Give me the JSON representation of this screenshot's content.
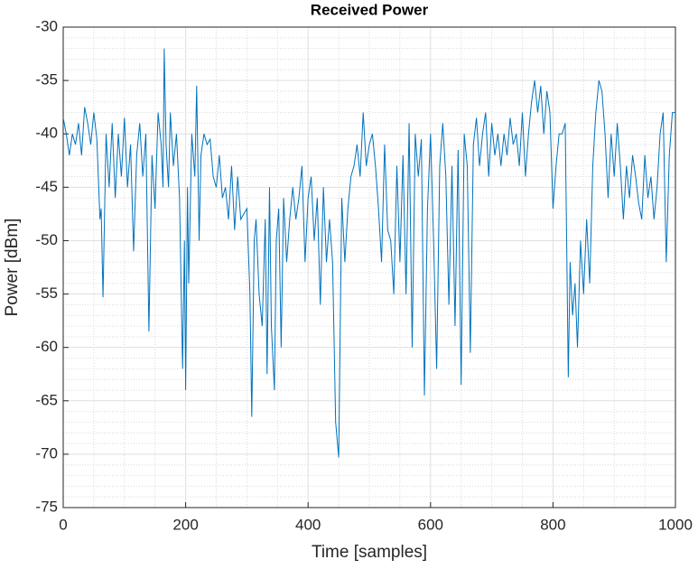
{
  "chart_data": {
    "type": "line",
    "title": "Received Power",
    "x_label": "Time [samples]",
    "y_label": "Power [dBm]",
    "x": [
      0,
      5,
      10,
      15,
      20,
      25,
      30,
      35,
      40,
      45,
      50,
      55,
      60,
      62,
      65,
      70,
      75,
      80,
      85,
      90,
      95,
      100,
      105,
      110,
      115,
      120,
      125,
      130,
      135,
      140,
      145,
      150,
      155,
      160,
      163,
      165,
      168,
      172,
      175,
      180,
      185,
      190,
      195,
      198,
      200,
      203,
      205,
      210,
      215,
      218,
      222,
      225,
      230,
      235,
      240,
      245,
      250,
      255,
      260,
      265,
      270,
      275,
      280,
      285,
      290,
      300,
      305,
      308,
      312,
      315,
      320,
      325,
      330,
      333,
      337,
      340,
      345,
      348,
      352,
      356,
      360,
      365,
      370,
      375,
      380,
      385,
      390,
      395,
      400,
      405,
      410,
      415,
      420,
      425,
      430,
      435,
      440,
      445,
      450,
      455,
      460,
      465,
      470,
      475,
      480,
      485,
      490,
      495,
      500,
      505,
      510,
      515,
      520,
      525,
      530,
      535,
      540,
      545,
      550,
      555,
      560,
      565,
      570,
      575,
      580,
      585,
      590,
      595,
      600,
      605,
      610,
      615,
      620,
      625,
      630,
      635,
      640,
      645,
      650,
      655,
      660,
      665,
      670,
      675,
      680,
      685,
      690,
      695,
      700,
      705,
      710,
      715,
      720,
      725,
      730,
      735,
      740,
      745,
      750,
      755,
      760,
      765,
      770,
      775,
      780,
      785,
      790,
      795,
      800,
      805,
      810,
      815,
      820,
      825,
      828,
      832,
      836,
      840,
      845,
      850,
      855,
      860,
      865,
      870,
      875,
      880,
      885,
      890,
      895,
      900,
      905,
      910,
      915,
      920,
      925,
      930,
      935,
      940,
      945,
      950,
      955,
      960,
      965,
      970,
      975,
      980,
      985,
      990,
      995,
      1000
    ],
    "series": [
      {
        "color": "#0072bd",
        "values": [
          -38.5,
          -40,
          -42,
          -40,
          -41,
          -39,
          -42,
          -37.5,
          -39,
          -41,
          -38,
          -40.5,
          -48,
          -47,
          -55.3,
          -40,
          -45,
          -39,
          -46,
          -40,
          -44,
          -38.5,
          -45,
          -41,
          -51,
          -42,
          -39,
          -44,
          -40,
          -58.5,
          -42,
          -47,
          -38,
          -41,
          -45,
          -32,
          -41,
          -45,
          -38,
          -43,
          -40,
          -46,
          -62,
          -50,
          -64,
          -45,
          -54,
          -40,
          -44,
          -35.5,
          -50,
          -42,
          -40,
          -41,
          -40.5,
          -44,
          -45,
          -42,
          -46,
          -45,
          -48,
          -43,
          -49,
          -44,
          -48,
          -47,
          -55,
          -66.5,
          -50,
          -48,
          -55,
          -58,
          -48,
          -62.5,
          -45,
          -58,
          -64,
          -50,
          -47,
          -60,
          -46,
          -52,
          -48,
          -45,
          -48,
          -46,
          -43,
          -52,
          -46,
          -44,
          -50,
          -46,
          -56,
          -45,
          -52,
          -48,
          -52,
          -67,
          -70.3,
          -46,
          -52,
          -47,
          -44,
          -43,
          -41,
          -44,
          -38,
          -43,
          -41,
          -40,
          -43,
          -47,
          -52,
          -41,
          -49,
          -50,
          -55,
          -43,
          -52,
          -42,
          -55,
          -39,
          -60,
          -40,
          -44,
          -40.5,
          -64.5,
          -47,
          -40,
          -50,
          -62,
          -43,
          -39,
          -44,
          -56,
          -43,
          -58,
          -41.5,
          -63.5,
          -40,
          -43,
          -60.5,
          -41,
          -38.5,
          -43,
          -40,
          -38,
          -44,
          -39,
          -42,
          -40,
          -43,
          -40,
          -42,
          -38.5,
          -41,
          -40,
          -43,
          -38,
          -44,
          -40,
          -37,
          -35,
          -38,
          -35.5,
          -40,
          -36,
          -38,
          -47,
          -43,
          -40,
          -40,
          -39,
          -62.8,
          -52,
          -57,
          -54,
          -60,
          -50,
          -55,
          -48,
          -54,
          -43,
          -38,
          -35,
          -36,
          -40,
          -46,
          -40,
          -44,
          -39,
          -43,
          -48,
          -43,
          -46,
          -42,
          -44,
          -46.5,
          -48,
          -42,
          -46,
          -44,
          -48,
          -45,
          -40,
          -38,
          -52,
          -42,
          -38,
          -38
        ]
      }
    ],
    "xlim": [
      0,
      1000
    ],
    "xticks": [
      0,
      200,
      400,
      600,
      800,
      1000
    ],
    "ylim": [
      -75,
      -30
    ],
    "yticks": [
      -75,
      -70,
      -65,
      -60,
      -55,
      -50,
      -45,
      -40,
      -35,
      -30
    ],
    "grid": true,
    "minor_grid": true
  }
}
